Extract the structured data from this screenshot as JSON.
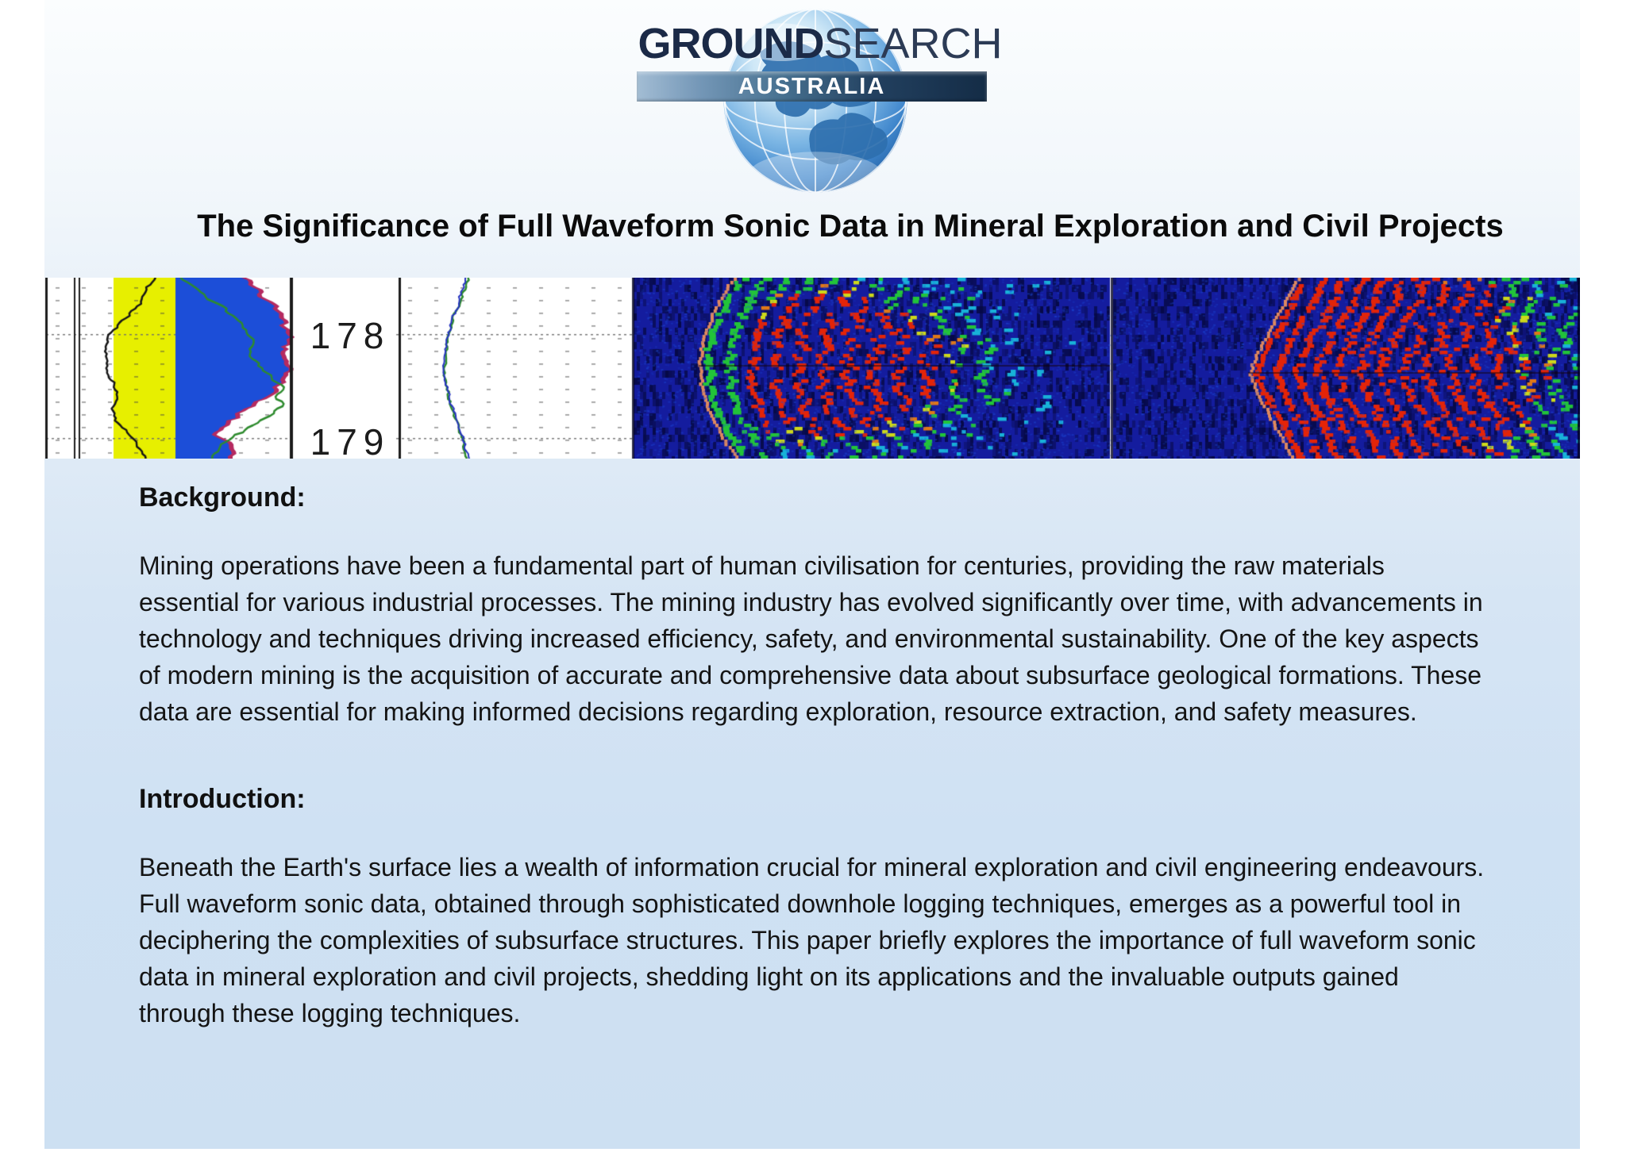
{
  "logo": {
    "word_primary": "GROUND",
    "word_secondary": "SEARCH",
    "banner_text": "AUSTRALIA"
  },
  "title": "The Significance of Full Waveform Sonic Data in Mineral Exploration and Civil Projects",
  "log_strip": {
    "depth_labels": [
      "178",
      "179"
    ],
    "palette": {
      "white_panel": "#ffffff",
      "yellow_band": "#e7ef00",
      "blue_fill": "#1c4ed8",
      "crimson_fringe": "#b52a60",
      "green_curve": "#2e8b2e",
      "blue_curve": "#2633c0",
      "black_curve": "#161616",
      "navy": "#141c9e",
      "salmon": "#e0895e",
      "red": "#e42408",
      "orange": "#e07818",
      "yellow": "#cdd91a",
      "green": "#22c439",
      "cyan": "#18b2d8"
    }
  },
  "sections": [
    {
      "heading": "Background:",
      "body": "Mining operations have been a fundamental part of human civilisation for centuries, providing the raw materials essential for various industrial processes. The mining industry has evolved significantly over time, with advancements in technology and techniques driving increased efficiency, safety, and environmental sustainability. One of the key aspects of modern mining is the acquisition of accurate and comprehensive data about subsurface geological formations. These data are essential for making informed decisions regarding exploration, resource extraction, and safety measures."
    },
    {
      "heading": "Introduction:",
      "body": "Beneath the Earth's surface lies a wealth of information crucial for mineral exploration and civil engineering endeavours. Full waveform sonic data, obtained through sophisticated downhole logging techniques, emerges as a powerful tool in deciphering the complexities of subsurface structures. This paper briefly explores the importance of full waveform sonic data in mineral exploration and civil projects, shedding light on its applications and the invaluable outputs gained through these logging techniques."
    }
  ]
}
